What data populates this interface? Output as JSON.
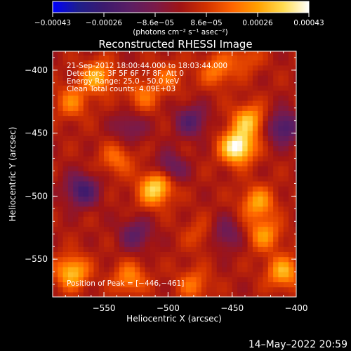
{
  "chart_data": {
    "type": "heatmap",
    "title": "Reconstructed RHESSI Image",
    "xlabel": "Heliocentric X (arcsec)",
    "ylabel": "Heliocentric Y (arcsec)",
    "xlim": [
      -590,
      -400
    ],
    "ylim": [
      -580,
      -385
    ],
    "xticks": [
      -550,
      -500,
      -450,
      -400
    ],
    "xtick_labels": [
      "−550",
      "−500",
      "−450",
      "−400"
    ],
    "yticks": [
      -400,
      -450,
      -500,
      -550
    ],
    "ytick_labels": [
      "−400",
      "−450",
      "−500",
      "−550"
    ],
    "colorbar": {
      "range": [
        -0.00043,
        0.00043
      ],
      "tick_labels": [
        "−0.00043",
        "−0.00026",
        "−8.6e−05",
        "8.6e−05",
        "0.00026",
        "0.00043"
      ],
      "unit_label": "(photons cm⁻² s⁻¹ asec⁻²)",
      "colormap": [
        "#0000ff",
        "#1e1e8c",
        "#3c1a6e",
        "#5a1e64",
        "#7a1a4a",
        "#a01414",
        "#d23200",
        "#ff6400",
        "#ffa000",
        "#ffdc50",
        "#ffffff"
      ]
    },
    "annotations": [
      "21-Sep-2012 18:00:44.000 to 18:03:44.000",
      "Detectors: 3F 5F 6F 7F 8F, Att 0",
      "Energy Range: 25.0 - 50.0 keV",
      "Clean    Total counts: 4.09E+03"
    ],
    "peak_label": "Position of Peak = [−446,−461]",
    "peak_position": [
      -446,
      -461
    ],
    "hotspots": [
      {
        "x": -446,
        "y": -461,
        "value": 0.00043
      },
      {
        "x": -437,
        "y": -440,
        "value": 0.00028
      },
      {
        "x": -430,
        "y": -505,
        "value": 0.00024
      },
      {
        "x": -425,
        "y": -530,
        "value": 0.00022
      },
      {
        "x": -410,
        "y": -560,
        "value": 0.00026
      },
      {
        "x": -555,
        "y": -405,
        "value": 0.00026
      },
      {
        "x": -575,
        "y": -425,
        "value": 0.00018
      },
      {
        "x": -540,
        "y": -470,
        "value": 0.00016
      },
      {
        "x": -505,
        "y": -487,
        "value": 0.0003
      },
      {
        "x": -512,
        "y": -497,
        "value": 0.0002
      },
      {
        "x": -520,
        "y": -420,
        "value": 0.00016
      },
      {
        "x": -500,
        "y": -405,
        "value": 0.00014
      },
      {
        "x": -462,
        "y": -400,
        "value": 0.00018
      },
      {
        "x": -575,
        "y": -560,
        "value": 0.0003
      },
      {
        "x": -530,
        "y": -565,
        "value": 0.0002
      },
      {
        "x": -480,
        "y": -570,
        "value": 0.00016
      },
      {
        "x": -440,
        "y": -390,
        "value": 0.00012
      },
      {
        "x": -475,
        "y": -530,
        "value": 0.0001
      }
    ],
    "coldspots": [
      {
        "x": -500,
        "y": -480,
        "value": -0.0003
      },
      {
        "x": -567,
        "y": -495,
        "value": -0.00026
      },
      {
        "x": -410,
        "y": -445,
        "value": -0.00026
      },
      {
        "x": -482,
        "y": -440,
        "value": -0.0002
      },
      {
        "x": -455,
        "y": -530,
        "value": -0.00016
      },
      {
        "x": -530,
        "y": -445,
        "value": -0.00014
      },
      {
        "x": -525,
        "y": -530,
        "value": -0.00018
      }
    ]
  },
  "footer": {
    "timestamp": "14–May–2022 20:59"
  }
}
